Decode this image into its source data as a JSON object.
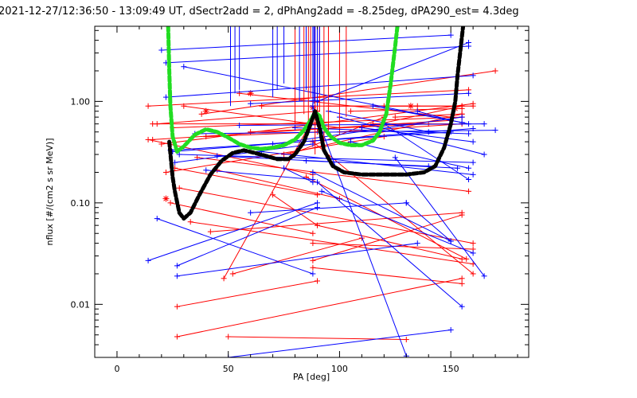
{
  "chart_data": {
    "type": "scatter",
    "title": "2021-12-27/12:36:50 - 13:09:49 UT, dSectr2add = 2, dPhAng2add = -8.25deg, dPA290_est=   4.3deg",
    "xlabel": "PA [deg]",
    "ylabel": "nflux [#/(cm2 s sr MeV)]",
    "xlim": [
      -10,
      185
    ],
    "ylim": [
      0.003,
      5.5
    ],
    "y_scale": "log",
    "x_ticks": [
      0,
      50,
      100,
      150
    ],
    "x_tick_labels": [
      "0",
      "50",
      "100",
      "150"
    ],
    "y_ticks": [
      0.01,
      0.1,
      1.0
    ],
    "y_tick_labels": [
      "0.01",
      "0.10",
      "1.00"
    ],
    "grid": false,
    "colors": {
      "red": "#ff0000",
      "blue": "#0000ff",
      "green": "#22dd22",
      "black": "#000000"
    },
    "series": [
      {
        "color": "red",
        "marker": "plus",
        "kind": "segments",
        "segments": [
          [
            [
              14,
              0.9
            ],
            [
              158,
              1.3
            ]
          ],
          [
            [
              16,
              0.42
            ],
            [
              150,
              0.65
            ]
          ],
          [
            [
              18,
              0.6
            ],
            [
              90,
              0.8
            ]
          ],
          [
            [
              20,
              0.38
            ],
            [
              160,
              0.95
            ]
          ],
          [
            [
              22,
              0.2
            ],
            [
              120,
              0.45
            ]
          ],
          [
            [
              24,
              0.1
            ],
            [
              88,
              0.05
            ]
          ],
          [
            [
              25,
              0.55
            ],
            [
              155,
              0.7
            ]
          ],
          [
            [
              26,
              0.22
            ],
            [
              90,
              0.12
            ]
          ],
          [
            [
              27,
              0.0095
            ],
            [
              90,
              0.017
            ]
          ],
          [
            [
              27,
              0.0048
            ],
            [
              155,
              0.018
            ]
          ],
          [
            [
              28,
              0.14
            ],
            [
              160,
              0.04
            ]
          ],
          [
            [
              30,
              0.9
            ],
            [
              100,
              0.55
            ]
          ],
          [
            [
              33,
              0.065
            ],
            [
              160,
              0.025
            ]
          ],
          [
            [
              36,
              0.28
            ],
            [
              158,
              0.13
            ]
          ],
          [
            [
              38,
              0.75
            ],
            [
              170,
              2.0
            ]
          ],
          [
            [
              40,
              0.45
            ],
            [
              90,
              0.5
            ]
          ],
          [
            [
              42,
              0.052
            ],
            [
              155,
              0.08
            ]
          ],
          [
            [
              45,
              0.21
            ],
            [
              100,
              0.11
            ]
          ],
          [
            [
              48,
              0.018
            ],
            [
              90,
              0.8
            ]
          ],
          [
            [
              50,
              0.0048
            ],
            [
              130,
              0.0045
            ]
          ],
          [
            [
              52,
              0.02
            ],
            [
              110,
              0.045
            ]
          ],
          [
            [
              55,
              1.2
            ],
            [
              150,
              0.7
            ]
          ],
          [
            [
              60,
              0.5
            ],
            [
              140,
              0.6
            ]
          ],
          [
            [
              65,
              0.9
            ],
            [
              135,
              0.9
            ]
          ],
          [
            [
              70,
              0.12
            ],
            [
              90,
              0.06
            ]
          ],
          [
            [
              75,
              0.3
            ],
            [
              155,
              0.75
            ]
          ],
          [
            [
              78,
              0.3
            ],
            [
              120,
              0.7
            ]
          ],
          [
            [
              85,
              0.18
            ],
            [
              157,
              0.028
            ]
          ],
          [
            [
              88,
              0.4
            ],
            [
              160,
              0.02
            ]
          ],
          [
            [
              88,
              0.023
            ],
            [
              155,
              0.016
            ]
          ],
          [
            [
              88,
              0.027
            ],
            [
              155,
              0.076
            ]
          ],
          [
            [
              88,
              0.04
            ],
            [
              160,
              0.035
            ]
          ],
          [
            [
              90,
              0.06
            ],
            [
              155,
              0.028
            ]
          ],
          [
            [
              95,
              0.9
            ],
            [
              160,
              0.9
            ]
          ],
          [
            [
              100,
              0.5
            ],
            [
              155,
              0.6
            ]
          ],
          [
            [
              105,
              0.8
            ],
            [
              155,
              0.85
            ]
          ],
          [
            [
              110,
              0.55
            ],
            [
              155,
              0.9
            ]
          ],
          [
            [
              115,
              0.6
            ],
            [
              150,
              0.6
            ]
          ],
          [
            [
              120,
              0.9
            ],
            [
              155,
              0.9
            ]
          ],
          [
            [
              125,
              0.7
            ],
            [
              155,
              0.75
            ]
          ],
          [
            [
              14,
              0.42
            ],
            [
              88,
              0.19
            ]
          ],
          [
            [
              16,
              0.6
            ],
            [
              90,
              0.6
            ]
          ]
        ],
        "stars": [
          [
            22,
            0.11
          ],
          [
            40,
            0.8
          ],
          [
            60,
            1.2
          ],
          [
            88,
            0.87
          ],
          [
            132,
            0.9
          ],
          [
            152,
            0.85
          ]
        ]
      },
      {
        "color": "blue",
        "marker": "plus",
        "kind": "segments",
        "segments": [
          [
            [
              14,
              0.027
            ],
            [
              90,
              0.1
            ]
          ],
          [
            [
              18,
              0.07
            ],
            [
              88,
              0.02
            ]
          ],
          [
            [
              20,
              3.2
            ],
            [
              150,
              4.5
            ]
          ],
          [
            [
              22,
              2.4
            ],
            [
              158,
              3.5
            ]
          ],
          [
            [
              24,
              0.33
            ],
            [
              150,
              0.5
            ]
          ],
          [
            [
              25,
              0.32
            ],
            [
              160,
              0.54
            ]
          ],
          [
            [
              26,
              0.25
            ],
            [
              88,
              0.38
            ]
          ],
          [
            [
              27,
              0.024
            ],
            [
              90,
              0.09
            ]
          ],
          [
            [
              27,
              0.019
            ],
            [
              135,
              0.04
            ]
          ],
          [
            [
              28,
              0.3
            ],
            [
              160,
              0.25
            ]
          ],
          [
            [
              30,
              2.2
            ],
            [
              158,
              0.6
            ]
          ],
          [
            [
              35,
              0.48
            ],
            [
              170,
              0.52
            ]
          ],
          [
            [
              40,
              0.21
            ],
            [
              88,
              0.17
            ]
          ],
          [
            [
              45,
              0.29
            ],
            [
              153,
              0.22
            ]
          ],
          [
            [
              50,
              0.003
            ],
            [
              150,
              0.0056
            ]
          ],
          [
            [
              55,
              0.58
            ],
            [
              165,
              0.6
            ]
          ],
          [
            [
              60,
              0.08
            ],
            [
              130,
              0.1
            ]
          ],
          [
            [
              65,
              0.32
            ],
            [
              160,
              0.19
            ]
          ],
          [
            [
              70,
              0.38
            ],
            [
              155,
              0.7
            ]
          ],
          [
            [
              75,
              0.22
            ],
            [
              88,
              0.16
            ]
          ],
          [
            [
              80,
              0.55
            ],
            [
              158,
              0.48
            ]
          ],
          [
            [
              85,
              0.26
            ],
            [
              140,
              0.23
            ]
          ],
          [
            [
              88,
              0.2
            ],
            [
              150,
              0.042
            ]
          ],
          [
            [
              90,
              0.16
            ],
            [
              155,
              0.0095
            ]
          ],
          [
            [
              92,
              0.13
            ],
            [
              160,
              0.032
            ]
          ],
          [
            [
              95,
              0.8
            ],
            [
              140,
              0.5
            ]
          ],
          [
            [
              100,
              0.7
            ],
            [
              165,
              0.3
            ]
          ],
          [
            [
              105,
              0.4
            ],
            [
              158,
              0.22
            ]
          ],
          [
            [
              110,
              0.55
            ],
            [
              160,
              0.4
            ]
          ],
          [
            [
              115,
              0.9
            ],
            [
              155,
              0.62
            ]
          ],
          [
            [
              120,
              0.6
            ],
            [
              158,
              0.17
            ]
          ],
          [
            [
              125,
              0.28
            ],
            [
              165,
              0.019
            ]
          ],
          [
            [
              130,
              0.1
            ],
            [
              150,
              0.042
            ]
          ],
          [
            [
              135,
              0.8
            ],
            [
              150,
              0.65
            ]
          ],
          [
            [
              88,
              0.9
            ],
            [
              130,
              0.0031
            ]
          ],
          [
            [
              90,
              1.0
            ],
            [
              158,
              3.8
            ]
          ],
          [
            [
              60,
              0.95
            ],
            [
              158,
              1.2
            ]
          ],
          [
            [
              22,
              1.1
            ],
            [
              160,
              1.8
            ]
          ]
        ],
        "stars": []
      },
      {
        "color": "red",
        "marker": "none",
        "kind": "vlines",
        "x": [
          80,
          84,
          86,
          87,
          89,
          90,
          91,
          93,
          95,
          100,
          103
        ],
        "y_from": [
          0.6,
          0.75,
          0.5,
          1.1,
          0.3,
          0.6,
          0.8,
          0.35,
          0.5,
          0.55,
          0.7
        ],
        "y_to": 5.5
      },
      {
        "color": "blue",
        "marker": "none",
        "kind": "vlines",
        "x": [
          51,
          53,
          55,
          70,
          72,
          75,
          82,
          85,
          88,
          88.5,
          89,
          90,
          91
        ],
        "y_from": [
          0.9,
          1.2,
          1.3,
          1.1,
          1.3,
          1.5,
          1.0,
          1.3,
          0.8,
          0.95,
          1.0,
          0.9,
          1.2
        ],
        "y_to": 5.5
      },
      {
        "color": "green",
        "marker": "none",
        "kind": "dashed-curve",
        "points": [
          [
            23,
            5.5
          ],
          [
            23.5,
            2.0
          ],
          [
            24,
            0.9
          ],
          [
            25,
            0.45
          ],
          [
            27,
            0.32
          ],
          [
            30,
            0.36
          ],
          [
            35,
            0.47
          ],
          [
            40,
            0.53
          ],
          [
            45,
            0.5
          ],
          [
            50,
            0.44
          ],
          [
            55,
            0.38
          ],
          [
            60,
            0.35
          ],
          [
            65,
            0.34
          ],
          [
            70,
            0.35
          ],
          [
            75,
            0.37
          ],
          [
            80,
            0.42
          ],
          [
            84,
            0.52
          ],
          [
            87,
            0.65
          ],
          [
            89,
            0.78
          ],
          [
            91,
            0.72
          ],
          [
            93,
            0.55
          ],
          [
            96,
            0.45
          ],
          [
            100,
            0.39
          ],
          [
            105,
            0.37
          ],
          [
            110,
            0.37
          ],
          [
            115,
            0.41
          ],
          [
            118,
            0.5
          ],
          [
            121,
            0.75
          ],
          [
            123,
            1.5
          ],
          [
            125,
            3.5
          ],
          [
            126,
            5.5
          ]
        ]
      },
      {
        "color": "black",
        "marker": "none",
        "kind": "dashed-curve",
        "points": [
          [
            23.5,
            0.4
          ],
          [
            25,
            0.18
          ],
          [
            26,
            0.13
          ],
          [
            28,
            0.08
          ],
          [
            30,
            0.07
          ],
          [
            33,
            0.08
          ],
          [
            37,
            0.12
          ],
          [
            42,
            0.19
          ],
          [
            47,
            0.26
          ],
          [
            52,
            0.31
          ],
          [
            57,
            0.33
          ],
          [
            62,
            0.31
          ],
          [
            67,
            0.29
          ],
          [
            72,
            0.27
          ],
          [
            77,
            0.27
          ],
          [
            80,
            0.3
          ],
          [
            84,
            0.4
          ],
          [
            87,
            0.6
          ],
          [
            89,
            0.8
          ],
          [
            91,
            0.55
          ],
          [
            93,
            0.33
          ],
          [
            97,
            0.23
          ],
          [
            102,
            0.2
          ],
          [
            110,
            0.19
          ],
          [
            120,
            0.19
          ],
          [
            130,
            0.19
          ],
          [
            138,
            0.2
          ],
          [
            143,
            0.23
          ],
          [
            147,
            0.35
          ],
          [
            150,
            0.6
          ],
          [
            152,
            1.0
          ],
          [
            153,
            1.8
          ],
          [
            154.5,
            3.5
          ],
          [
            155.5,
            5.5
          ]
        ]
      }
    ]
  }
}
